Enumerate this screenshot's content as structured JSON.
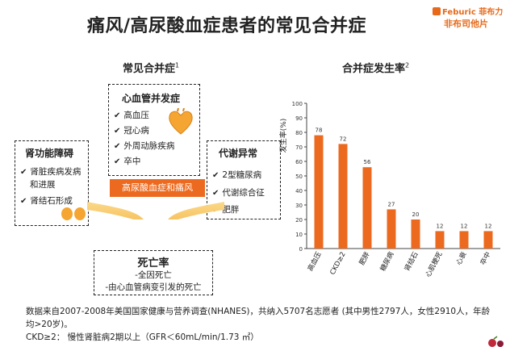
{
  "title": "痛风/高尿酸血症患者的常见合并症",
  "logo": {
    "brand": "Feburic",
    "brand_cn_small": "菲布力",
    "product": "非布司他片"
  },
  "left_panel": {
    "title": "常见合并症",
    "title_sup": "1",
    "cardio": {
      "title": "心血管并发症",
      "items": [
        "高血压",
        "冠心病",
        "外周动脉疾病",
        "卒中"
      ]
    },
    "renal": {
      "title": "肾功能障碍",
      "items": [
        "肾脏疾病发病",
        "和进展",
        "肾结石形成"
      ]
    },
    "metabolic": {
      "title": "代谢异常",
      "items": [
        "2型糖尿病",
        "代谢综合征",
        "肥胖"
      ]
    },
    "banner": "高尿酸血症和痛风",
    "death": {
      "title": "死亡率",
      "lines": [
        "-全因死亡",
        "-由心血管病变引发的死亡"
      ]
    }
  },
  "chart_title": "合并症发生率",
  "chart_title_sup": "2",
  "chart_data": {
    "type": "bar",
    "title": "合并症发生率",
    "ylabel": "发生率(%)",
    "xlabel": "",
    "ylim": [
      0,
      100
    ],
    "yticks": [
      0,
      10,
      20,
      30,
      40,
      50,
      60,
      70,
      80,
      90,
      100
    ],
    "categories": [
      "高血压",
      "CKD≥2",
      "肥胖",
      "糖尿病",
      "肾结石",
      "心肌梗死",
      "心衰",
      "卒中"
    ],
    "values": [
      78,
      72,
      56,
      27,
      20,
      12,
      12,
      12
    ],
    "bar_color": "#ec6a1f",
    "grid": false
  },
  "notes": {
    "line1": "数据来自2007-2008年美国国家健康与营养调查(NHANES)，共纳入5707名志愿者 (其中男性2797人，女性2910人，年龄均>20岁)。",
    "line2": "CKD≥2： 慢性肾脏病2期以上（GFR＜60mL/min/1.73 ㎡）"
  },
  "colors": {
    "accent": "#ec6a1f",
    "arrow": "#f2b134"
  }
}
